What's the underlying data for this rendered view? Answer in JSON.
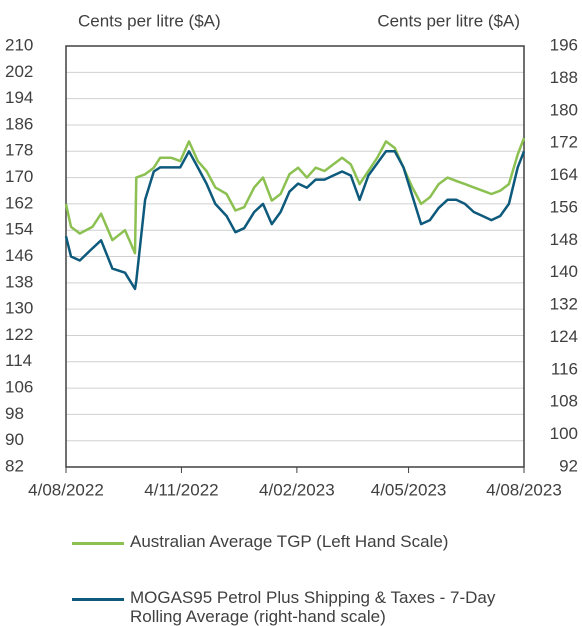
{
  "chart_data": {
    "type": "line",
    "y_label": "Cents per litre ($A)",
    "y2_label": "Cents per litre ($A)",
    "x": [
      "2022-08-04",
      "2022-08-08",
      "2022-08-15",
      "2022-08-25",
      "2022-09-01",
      "2022-09-10",
      "2022-09-20",
      "2022-09-28",
      "2022-09-29",
      "2022-10-06",
      "2022-10-13",
      "2022-10-18",
      "2022-10-27",
      "2022-11-03",
      "2022-11-10",
      "2022-11-17",
      "2022-11-24",
      "2022-12-01",
      "2022-12-10",
      "2022-12-17",
      "2022-12-24",
      "2023-01-01",
      "2023-01-08",
      "2023-01-15",
      "2023-01-22",
      "2023-01-29",
      "2023-02-05",
      "2023-02-12",
      "2023-02-19",
      "2023-02-26",
      "2023-03-05",
      "2023-03-12",
      "2023-03-19",
      "2023-03-26",
      "2023-04-02",
      "2023-04-09",
      "2023-04-16",
      "2023-04-23",
      "2023-04-30",
      "2023-05-07",
      "2023-05-14",
      "2023-05-21",
      "2023-05-28",
      "2023-06-04",
      "2023-06-11",
      "2023-06-18",
      "2023-06-25",
      "2023-07-02",
      "2023-07-09",
      "2023-07-16",
      "2023-07-23",
      "2023-07-30",
      "2023-08-04"
    ],
    "series": [
      {
        "name": "Australian Average TGP (Left Hand Scale)",
        "color": "#8cc152",
        "values": [
          162,
          155,
          153,
          155,
          159,
          151,
          154,
          147,
          170,
          171,
          173,
          176,
          176,
          175,
          181,
          175,
          172,
          167,
          165,
          160,
          161,
          167,
          170,
          163,
          165,
          171,
          173,
          170,
          173,
          172,
          174,
          176,
          174,
          168,
          172,
          176,
          181,
          179,
          173,
          167,
          162,
          164,
          168,
          170,
          169,
          168,
          167,
          166,
          165,
          166,
          168,
          177,
          182
        ]
      },
      {
        "name": "MOGAS95 Petrol Plus Shipping & Taxes - 7-Day Rolling Average (right-hand scale)",
        "color": "#0e5a7c",
        "axis": "y2",
        "values": [
          149,
          144,
          143,
          146,
          148,
          141,
          140,
          136,
          138,
          158,
          165,
          166,
          166,
          166,
          170,
          166,
          162,
          157,
          154,
          150,
          151,
          155,
          157,
          152,
          155,
          160,
          162,
          161,
          163,
          163,
          164,
          165,
          164,
          158,
          164,
          167,
          170,
          170,
          166,
          159,
          152,
          153,
          156,
          158,
          158,
          157,
          155,
          154,
          153,
          154,
          157,
          166,
          170
        ]
      }
    ],
    "xlim": [
      "2022-08-04",
      "2023-08-04"
    ],
    "xticks": [
      {
        "value": "2022-08-04",
        "label": "4/08/2022"
      },
      {
        "value": "2022-11-04",
        "label": "4/11/2022"
      },
      {
        "value": "2023-02-04",
        "label": "4/02/2023"
      },
      {
        "value": "2023-05-04",
        "label": "4/05/2023"
      },
      {
        "value": "2023-08-04",
        "label": "4/08/2023"
      }
    ],
    "ylim": [
      82,
      210
    ],
    "yticks": [
      82,
      90,
      98,
      106,
      114,
      122,
      130,
      138,
      146,
      154,
      162,
      170,
      178,
      186,
      194,
      202,
      210
    ],
    "y2lim": [
      92,
      196
    ],
    "y2ticks": [
      92,
      100,
      108,
      116,
      124,
      132,
      140,
      148,
      156,
      164,
      172,
      180,
      188,
      196
    ],
    "grid": true
  }
}
